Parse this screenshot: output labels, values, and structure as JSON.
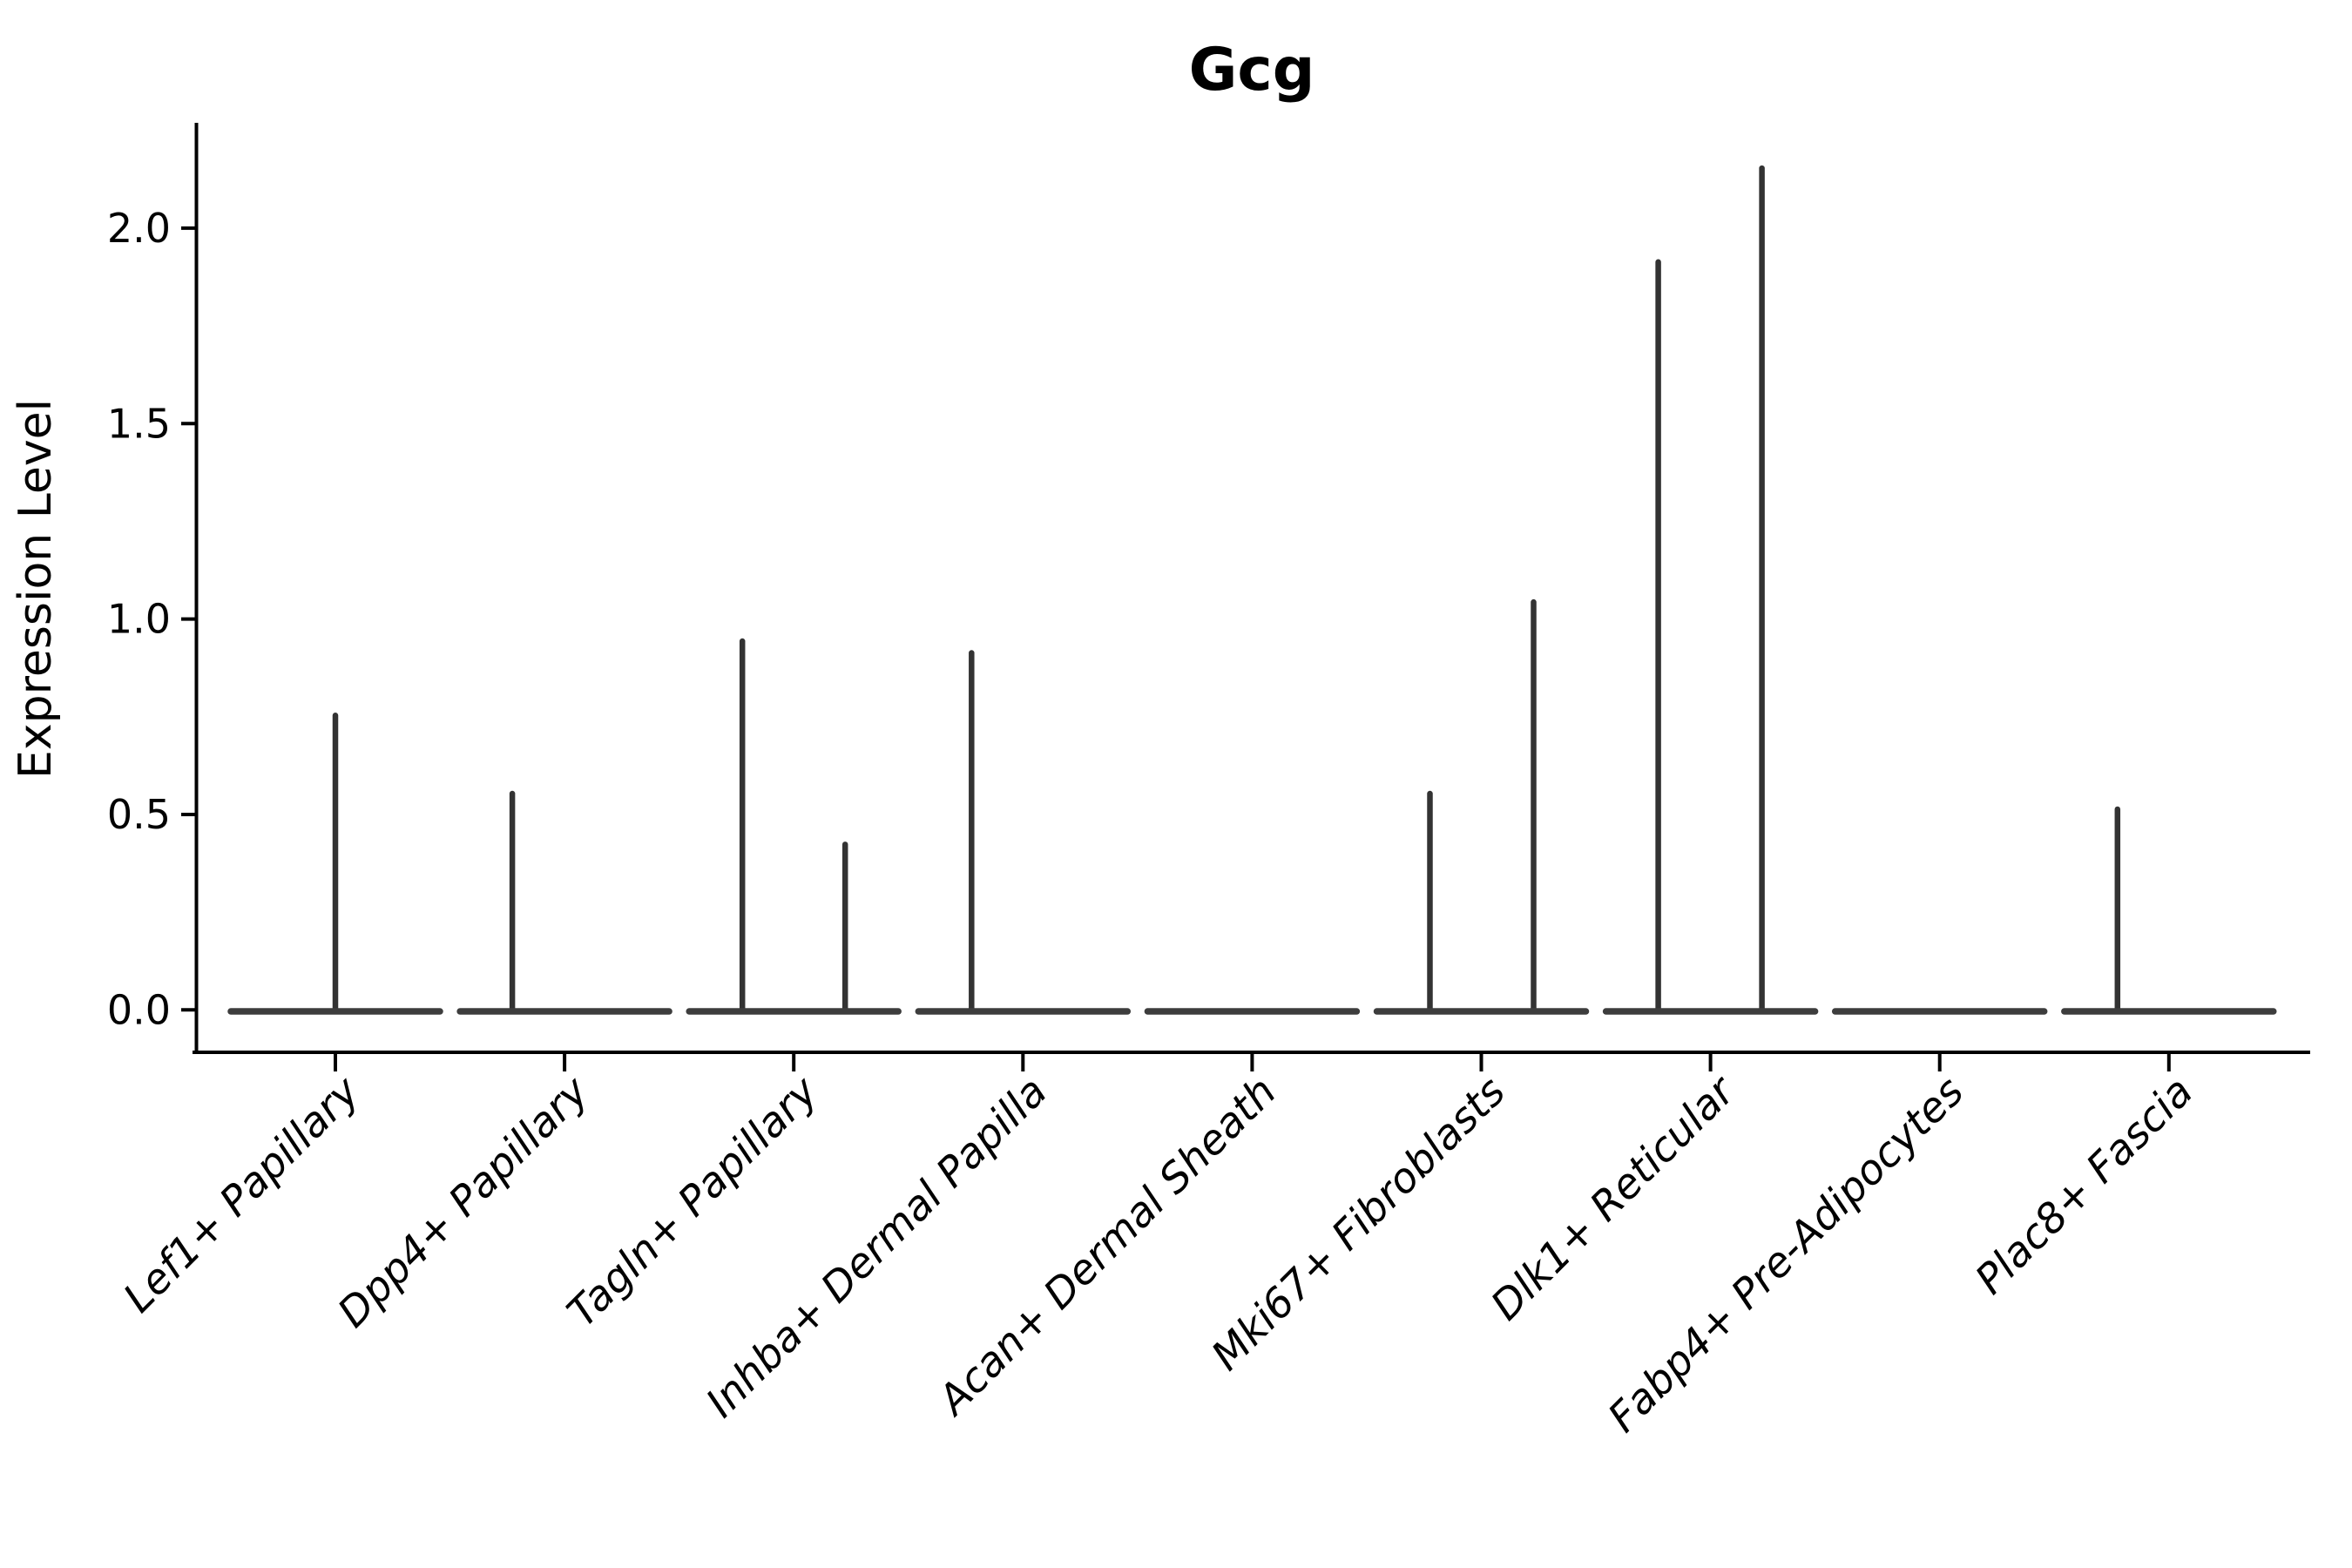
{
  "figure": {
    "title": "Gcg"
  },
  "chart_data": {
    "type": "violin",
    "title": "Gcg",
    "xlabel": "",
    "ylabel": "Expression Level",
    "ylim": [
      -0.1,
      2.27
    ],
    "yticks": [
      0.0,
      0.5,
      1.0,
      1.5,
      2.0
    ],
    "ytick_labels": [
      "0.0",
      "0.5",
      "1.0",
      "1.5",
      "2.0"
    ],
    "grid": false,
    "legend": "none",
    "violin_stroke_color": "#333333",
    "violin_base_color": "#3d3d3d",
    "axis_color": "#000000",
    "categories": [
      {
        "label": "Lef1+ Papillary",
        "base_value": 0.0,
        "max_expression": 0.76,
        "spikes": [
          {
            "dx": 0,
            "value": 0.76
          }
        ]
      },
      {
        "label": "Dpp4+ Papillary",
        "base_value": 0.0,
        "max_expression": 0.56,
        "spikes": [
          {
            "dx": -60,
            "value": 0.56
          }
        ]
      },
      {
        "label": "Tagln+ Papillary",
        "base_value": 0.0,
        "max_expression": 0.95,
        "spikes": [
          {
            "dx": -59,
            "value": 0.95
          },
          {
            "dx": 59,
            "value": 0.43
          }
        ]
      },
      {
        "label": "Inhba+ Dermal Papilla",
        "base_value": 0.0,
        "max_expression": 0.92,
        "spikes": [
          {
            "dx": -59,
            "value": 0.92
          }
        ]
      },
      {
        "label": "Acan+ Dermal Sheath",
        "base_value": 0.0,
        "max_expression": 0.0,
        "spikes": []
      },
      {
        "label": "Mki67+ Fibroblasts",
        "base_value": 0.0,
        "max_expression": 1.05,
        "spikes": [
          {
            "dx": -59,
            "value": 0.56
          },
          {
            "dx": 60,
            "value": 1.05
          }
        ]
      },
      {
        "label": "Dlk1+ Reticular",
        "base_value": 0.0,
        "max_expression": 2.16,
        "spikes": [
          {
            "dx": -60,
            "value": 1.92
          },
          {
            "dx": 59,
            "value": 2.16
          }
        ]
      },
      {
        "label": "Fabp4+ Pre-Adipocytes",
        "base_value": 0.0,
        "max_expression": 0.0,
        "spikes": []
      },
      {
        "label": "Plac8+ Fascia",
        "base_value": 0.0,
        "max_expression": 0.52,
        "spikes": [
          {
            "dx": -59,
            "value": 0.52
          }
        ]
      }
    ]
  }
}
